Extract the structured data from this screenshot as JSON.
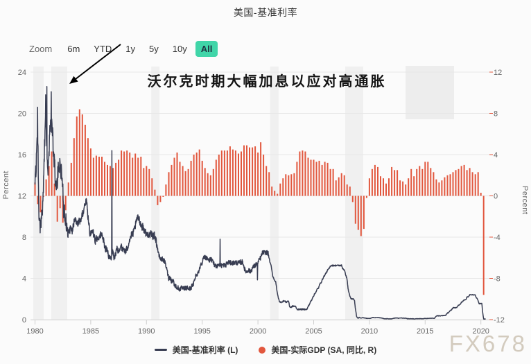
{
  "title": "美国-基准利率",
  "range_selector": {
    "zoom_label": "Zoom",
    "buttons": [
      {
        "label": "6m",
        "selected": false
      },
      {
        "label": "YTD",
        "selected": false
      },
      {
        "label": "1y",
        "selected": false
      },
      {
        "label": "5y",
        "selected": false
      },
      {
        "label": "10y",
        "selected": false
      },
      {
        "label": "All",
        "selected": true
      }
    ],
    "selected_bg": "#40d5a8"
  },
  "annotation": {
    "text": "沃尔克时期大幅加息以应对高通胀"
  },
  "watermark": "FX678",
  "legend": [
    {
      "type": "line",
      "color": "#383d52",
      "label": "美国-基准利率 (L)"
    },
    {
      "type": "circle",
      "color": "#e2573e",
      "label": "美国-实际GDP (SA, 同比, R)"
    }
  ],
  "chart_data": {
    "type": "line+bar",
    "title": "美国-基准利率",
    "x_axis": {
      "ticks": [
        1980,
        1985,
        1990,
        1995,
        2000,
        2005,
        2010,
        2015,
        2020
      ],
      "range": [
        1979.6,
        2020.9
      ]
    },
    "y_axis_left": {
      "label": "Percent",
      "ticks": [
        0,
        4,
        8,
        12,
        16,
        20,
        24
      ],
      "range": [
        0,
        24
      ]
    },
    "y_axis_right": {
      "label": "Percent",
      "ticks": [
        -12,
        -8,
        -4,
        0,
        4,
        8,
        12
      ],
      "range": [
        -12,
        12
      ]
    },
    "grid": true,
    "legend_position": "bottom",
    "recession_bands": [
      [
        1979.84,
        1980.78
      ],
      [
        1981.46,
        1982.89
      ],
      [
        1990.42,
        1991.16
      ],
      [
        2001.1,
        2001.85
      ],
      [
        2007.83,
        2009.45
      ]
    ],
    "noise_profile": [
      [
        1980,
        0.9
      ],
      [
        1983,
        0.35
      ],
      [
        1991,
        0.22
      ],
      [
        2001,
        0.06
      ],
      [
        2009,
        0.015
      ],
      [
        2016,
        0.03
      ]
    ],
    "spikes": [
      [
        1980.22,
        20.6
      ],
      [
        1980.96,
        21.8
      ],
      [
        1981.06,
        22.6
      ],
      [
        1981.45,
        22.1
      ],
      [
        1986.9,
        16.4
      ],
      [
        1996.6,
        7.8
      ],
      [
        1999.95,
        3.85
      ]
    ],
    "series": [
      {
        "name": "美国-基准利率 (L)",
        "type": "line",
        "axis": "left",
        "color": "#383d52",
        "x_start": 1980,
        "x_step_months": 1,
        "values": [
          13.8,
          14.1,
          17.2,
          17.6,
          11.0,
          9.5,
          9.0,
          9.6,
          10.9,
          12.8,
          15.9,
          18.9,
          19.1,
          15.9,
          14.7,
          15.7,
          18.5,
          19.1,
          19.0,
          17.8,
          15.9,
          15.1,
          13.3,
          12.4,
          13.2,
          14.8,
          14.7,
          14.9,
          14.4,
          14.2,
          12.6,
          10.1,
          10.3,
          9.7,
          9.2,
          8.9,
          8.7,
          8.5,
          8.8,
          8.8,
          8.6,
          9.0,
          9.4,
          9.6,
          9.5,
          9.5,
          9.3,
          9.5,
          9.6,
          9.6,
          9.9,
          10.3,
          10.3,
          11.1,
          11.2,
          11.6,
          11.3,
          10.0,
          9.4,
          8.4,
          8.4,
          8.5,
          8.6,
          8.3,
          8.0,
          7.5,
          7.9,
          7.9,
          7.9,
          8.0,
          8.1,
          8.3,
          8.1,
          7.9,
          7.5,
          7.0,
          6.9,
          6.9,
          6.6,
          6.2,
          5.9,
          5.9,
          6.0,
          6.9,
          6.4,
          6.1,
          6.1,
          6.4,
          6.9,
          6.7,
          6.6,
          6.7,
          7.2,
          7.3,
          6.7,
          6.8,
          6.8,
          6.6,
          6.6,
          6.9,
          7.1,
          7.5,
          7.8,
          8.0,
          8.2,
          8.3,
          8.4,
          8.8,
          9.1,
          9.4,
          9.9,
          9.8,
          9.8,
          9.5,
          9.2,
          9.0,
          9.0,
          8.8,
          8.6,
          8.5,
          8.2,
          8.2,
          8.3,
          8.3,
          8.2,
          8.3,
          8.2,
          8.1,
          8.2,
          8.1,
          7.8,
          7.3,
          6.9,
          6.3,
          6.1,
          5.9,
          5.8,
          5.9,
          5.8,
          5.7,
          5.5,
          5.2,
          4.8,
          4.4,
          4.0,
          4.1,
          4.0,
          3.7,
          3.8,
          3.8,
          3.3,
          3.3,
          3.2,
          3.1,
          3.1,
          2.9,
          3.0,
          3.0,
          3.1,
          3.0,
          3.0,
          3.0,
          3.1,
          3.0,
          3.1,
          3.0,
          3.0,
          3.0,
          3.1,
          3.3,
          3.3,
          3.6,
          4.0,
          4.3,
          4.3,
          4.5,
          4.7,
          4.8,
          5.3,
          5.5,
          5.5,
          5.9,
          6.0,
          6.1,
          6.0,
          6.0,
          5.9,
          5.7,
          5.8,
          5.8,
          5.8,
          5.6,
          5.6,
          5.2,
          5.3,
          5.2,
          5.2,
          5.3,
          5.4,
          5.2,
          5.3,
          5.2,
          5.3,
          5.3,
          5.3,
          5.2,
          5.4,
          5.5,
          5.5,
          5.6,
          5.5,
          5.5,
          5.5,
          5.5,
          5.5,
          5.5,
          5.6,
          5.5,
          5.5,
          5.5,
          5.5,
          5.6,
          5.5,
          5.6,
          5.5,
          5.1,
          4.8,
          4.7,
          4.6,
          4.8,
          4.8,
          4.7,
          4.7,
          4.8,
          5.0,
          5.1,
          5.2,
          5.2,
          5.4,
          5.3,
          5.5,
          5.7,
          5.9,
          6.0,
          6.3,
          6.5,
          6.5,
          6.5,
          6.5,
          6.5,
          6.5,
          6.4,
          6.0,
          5.5,
          5.3,
          4.8,
          4.2,
          4.0,
          3.8,
          3.7,
          3.1,
          2.5,
          2.1,
          1.8,
          1.7,
          1.7,
          1.7,
          1.8,
          1.8,
          1.8,
          1.7,
          1.7,
          1.8,
          1.8,
          1.3,
          1.2,
          1.2,
          1.3,
          1.3,
          1.3,
          1.3,
          1.2,
          1.0,
          1.0,
          1.0,
          1.0,
          1.0,
          1.0,
          1.0,
          1.0,
          1.0,
          1.0,
          1.0,
          1.0,
          1.3,
          1.4,
          1.6,
          1.8,
          1.9,
          2.2,
          2.3,
          2.5,
          2.6,
          2.8,
          3.0,
          3.0,
          3.3,
          3.5,
          3.6,
          3.8,
          4.0,
          4.2,
          4.3,
          4.5,
          4.6,
          4.8,
          4.9,
          5.0,
          5.2,
          5.25,
          5.25,
          5.25,
          5.25,
          5.24,
          5.25,
          5.26,
          5.26,
          5.25,
          5.25,
          5.25,
          5.26,
          5.0,
          4.9,
          4.8,
          4.5,
          4.2,
          3.9,
          3.0,
          2.6,
          2.3,
          2.0,
          2.0,
          2.0,
          2.0,
          1.8,
          1.0,
          0.4,
          0.16,
          0.15,
          0.22,
          0.18,
          0.15,
          0.18,
          0.21,
          0.16,
          0.16,
          0.15,
          0.12,
          0.12,
          0.12,
          0.11,
          0.13,
          0.16,
          0.2,
          0.2,
          0.18,
          0.18,
          0.19,
          0.19,
          0.19,
          0.19,
          0.18,
          0.17,
          0.16,
          0.14,
          0.1,
          0.09,
          0.09,
          0.07,
          0.1,
          0.08,
          0.07,
          0.08,
          0.07,
          0.08,
          0.1,
          0.13,
          0.14,
          0.16,
          0.16,
          0.16,
          0.13,
          0.14,
          0.16,
          0.16,
          0.16,
          0.14,
          0.15,
          0.14,
          0.15,
          0.11,
          0.09,
          0.09,
          0.08,
          0.08,
          0.09,
          0.08,
          0.09,
          0.07,
          0.07,
          0.08,
          0.09,
          0.09,
          0.1,
          0.09,
          0.09,
          0.09,
          0.09,
          0.09,
          0.12,
          0.11,
          0.11,
          0.11,
          0.12,
          0.12,
          0.13,
          0.13,
          0.14,
          0.14,
          0.12,
          0.12,
          0.24,
          0.34,
          0.38,
          0.36,
          0.37,
          0.37,
          0.38,
          0.39,
          0.4,
          0.4,
          0.4,
          0.41,
          0.54,
          0.65,
          0.66,
          0.79,
          0.9,
          0.91,
          1.04,
          1.15,
          1.16,
          1.15,
          1.15,
          1.16,
          1.3,
          1.41,
          1.42,
          1.51,
          1.69,
          1.7,
          1.82,
          1.91,
          1.91,
          1.95,
          2.19,
          2.2,
          2.27,
          2.4,
          2.4,
          2.41,
          2.42,
          2.39,
          2.38,
          2.4,
          2.13,
          2.04,
          1.83,
          1.55,
          1.55,
          1.55,
          1.58,
          0.65,
          0.05,
          0.05,
          0.08
        ]
      },
      {
        "name": "美国-实际GDP (SA, 同比, R)",
        "type": "bar",
        "axis": "right",
        "color": "#e2573e",
        "x_start": 1980,
        "x_step_months": 3,
        "values": [
          1.3,
          -0.8,
          -1.6,
          -0.1,
          1.6,
          2.9,
          4.3,
          1.2,
          -2.5,
          -1.2,
          -2.6,
          -1.4,
          1.3,
          3.2,
          5.6,
          7.7,
          8.4,
          7.9,
          6.9,
          5.6,
          4.6,
          3.7,
          3.9,
          3.8,
          3.8,
          3.3,
          3.0,
          2.9,
          2.7,
          3.2,
          3.5,
          4.4,
          4.3,
          4.4,
          4.2,
          3.7,
          4.1,
          3.7,
          3.8,
          2.7,
          2.9,
          2.6,
          1.7,
          0.6,
          -0.9,
          -0.6,
          -0.1,
          1.1,
          2.3,
          3.0,
          3.7,
          4.2,
          3.3,
          2.9,
          2.4,
          2.6,
          3.4,
          4.0,
          4.2,
          4.5,
          3.4,
          2.7,
          2.2,
          2.0,
          2.6,
          3.5,
          4.0,
          4.4,
          4.4,
          4.4,
          4.8,
          4.5,
          4.4,
          4.1,
          4.3,
          4.9,
          4.9,
          4.7,
          4.7,
          4.8,
          4.2,
          5.2,
          4.0,
          2.9,
          2.3,
          0.9,
          0.5,
          0.2,
          1.2,
          1.7,
          2.1,
          2.0,
          2.1,
          2.2,
          3.3,
          4.3,
          4.4,
          4.3,
          3.7,
          3.5,
          3.5,
          3.3,
          3.4,
          3.0,
          3.3,
          3.2,
          2.6,
          2.6,
          1.5,
          1.8,
          2.2,
          2.0,
          1.1,
          0.9,
          -0.6,
          -2.7,
          -3.3,
          -3.9,
          -3.2,
          -0.2,
          1.7,
          2.6,
          3.0,
          2.8,
          1.9,
          1.7,
          1.2,
          1.7,
          2.8,
          2.5,
          2.5,
          1.5,
          1.4,
          1.1,
          1.7,
          2.6,
          1.9,
          2.6,
          2.9,
          2.6,
          3.3,
          3.3,
          2.7,
          2.3,
          1.6,
          1.3,
          1.5,
          1.8,
          2.0,
          2.1,
          2.3,
          2.5,
          2.6,
          2.9,
          3.0,
          2.5,
          2.7,
          2.3,
          2.1,
          2.3,
          0.3,
          -9.6
        ]
      }
    ]
  }
}
